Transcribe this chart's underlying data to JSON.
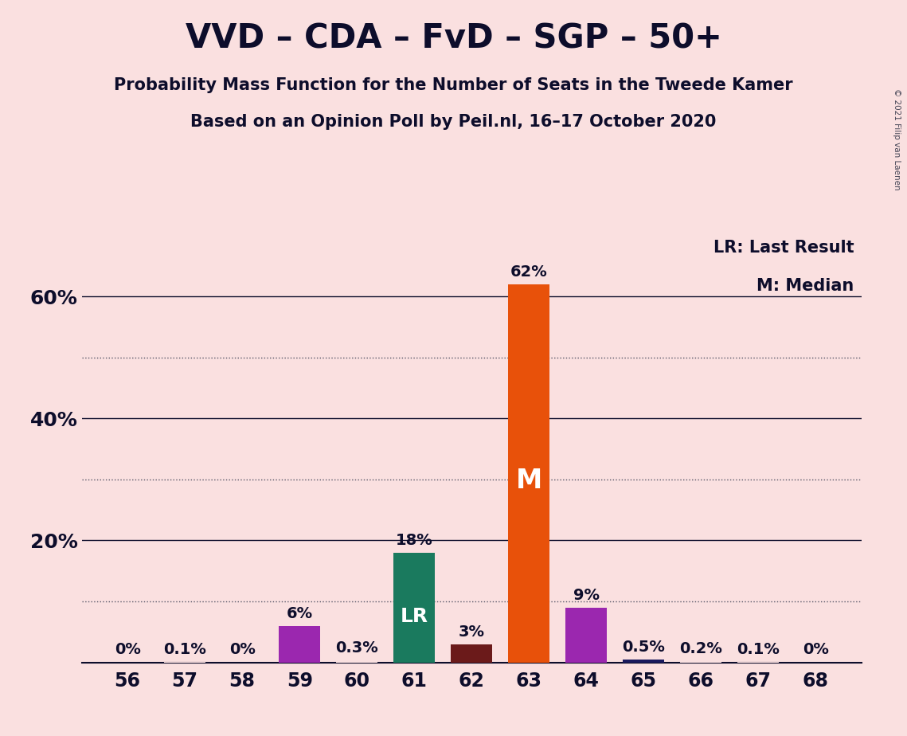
{
  "title": "VVD – CDA – FvD – SGP – 50+",
  "subtitle1": "Probability Mass Function for the Number of Seats in the Tweede Kamer",
  "subtitle2": "Based on an Opinion Poll by Peil.nl, 16–17 October 2020",
  "copyright": "© 2021 Filip van Laenen",
  "x_values": [
    56,
    57,
    58,
    59,
    60,
    61,
    62,
    63,
    64,
    65,
    66,
    67,
    68
  ],
  "y_values": [
    0.0,
    0.1,
    0.0,
    6.0,
    0.3,
    18.0,
    3.0,
    62.0,
    9.0,
    0.5,
    0.2,
    0.1,
    0.0
  ],
  "bar_colors": [
    "#FAE0E0",
    "#FAE0E0",
    "#FAE0E0",
    "#9B27AF",
    "#FAE0E0",
    "#1a7a5e",
    "#6B1A1A",
    "#E8510A",
    "#9B27AF",
    "#1a1a5e",
    "#FAE0E0",
    "#FAE0E0",
    "#FAE0E0"
  ],
  "bar_labels": [
    "0%",
    "0.1%",
    "0%",
    "6%",
    "0.3%",
    "18%",
    "3%",
    "62%",
    "9%",
    "0.5%",
    "0.2%",
    "0.1%",
    "0%"
  ],
  "lr_bar": 61,
  "median_bar": 63,
  "lr_label": "LR",
  "median_label": "M",
  "legend_lr": "LR: Last Result",
  "legend_m": "M: Median",
  "background_color": "#FAE0E0",
  "ylim": [
    0,
    70
  ],
  "solid_yticks": [
    20,
    40,
    60
  ],
  "dotted_yticks": [
    10,
    30,
    50
  ],
  "title_fontsize": 30,
  "subtitle_fontsize": 15,
  "axis_tick_fontsize": 17,
  "bar_label_fontsize": 14,
  "bar_inlabel_fontsize_lr": 18,
  "bar_inlabel_fontsize_m": 24,
  "legend_fontsize": 15,
  "text_color": "#0d0d2b"
}
